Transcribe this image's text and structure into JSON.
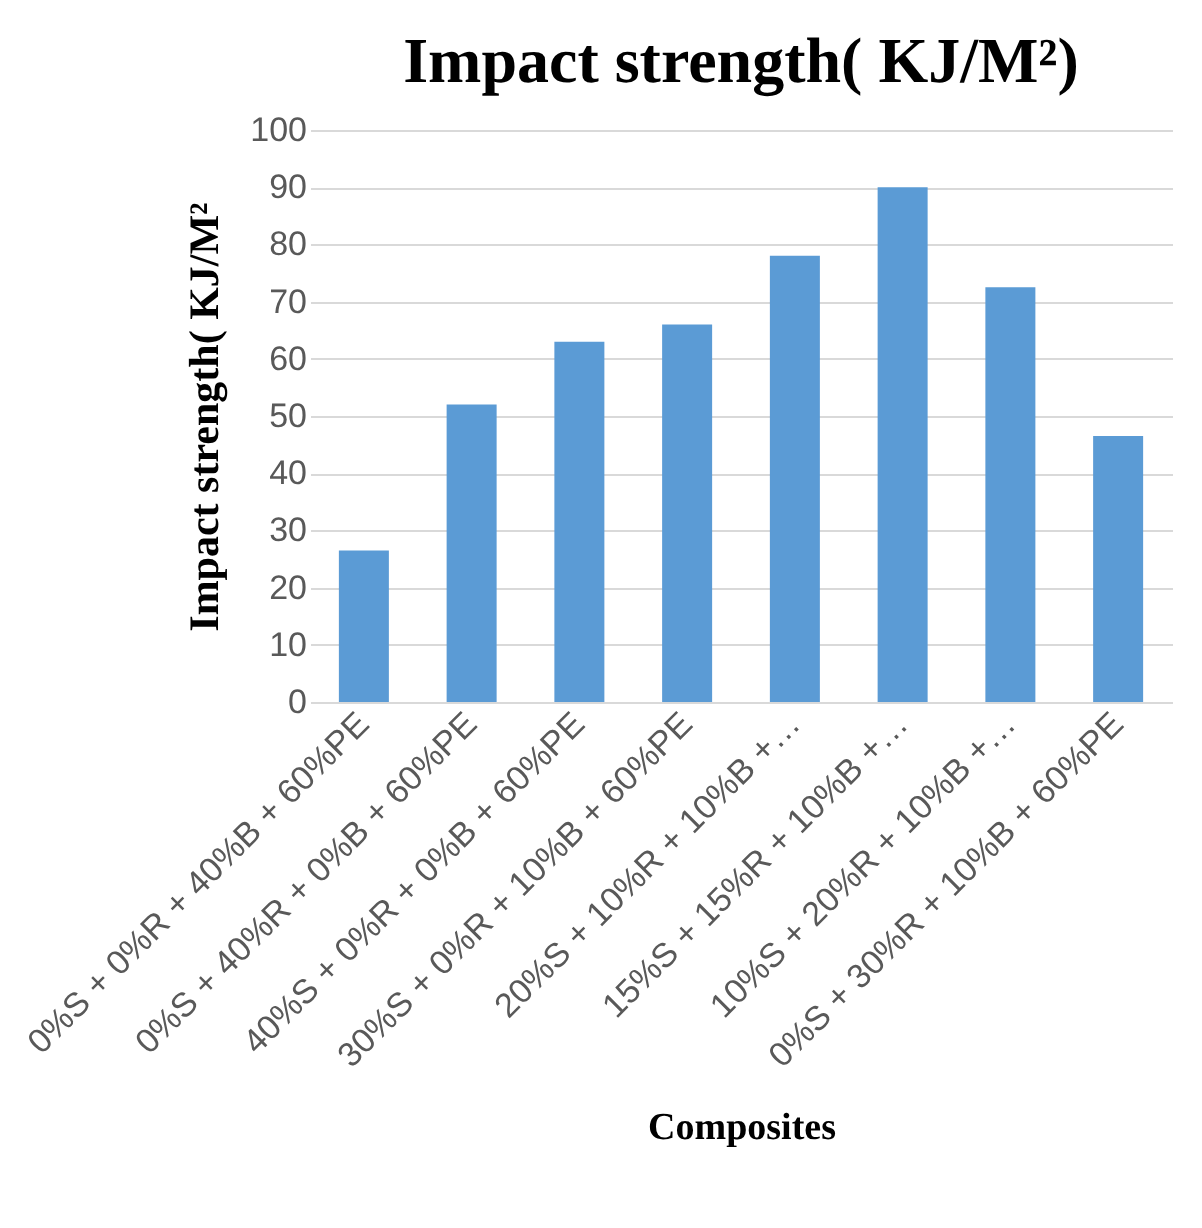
{
  "chart_data": {
    "type": "bar",
    "title": "Impact strength( KJ/M²)",
    "xlabel": "Composites",
    "ylabel": "Impact strength( KJ/M²",
    "categories": [
      "0%S + 0%R + 40%B + 60%PE",
      "0%S + 40%R + 0%B + 60%PE",
      "40%S + 0%R + 0%B + 60%PE",
      "30%S + 0%R + 10%B + 60%PE",
      "20%S + 10%R + 10%B +…",
      "15%S + 15%R + 10%B +…",
      "10%S + 20%R + 10%B +…",
      "0%S + 30%R + 10%B + 60%PE"
    ],
    "values": [
      26.5,
      52,
      63,
      66,
      78,
      90,
      72.5,
      46.5
    ],
    "color": "#5b9bd5",
    "ylim": [
      0,
      100
    ],
    "yticks": [
      0,
      10,
      20,
      30,
      40,
      50,
      60,
      70,
      80,
      90,
      100
    ],
    "grid": "y"
  }
}
